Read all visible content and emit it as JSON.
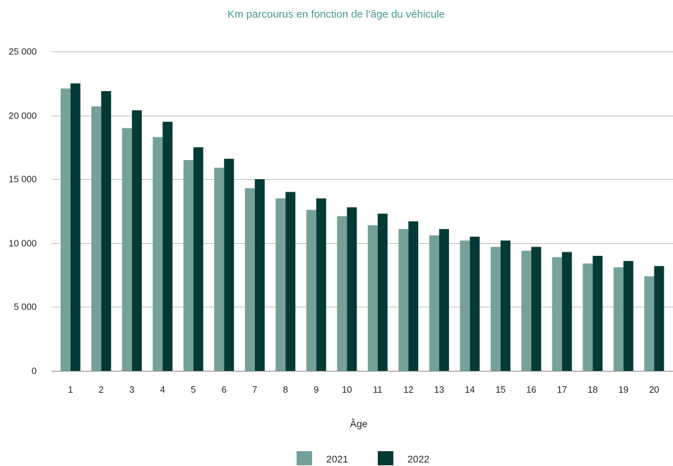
{
  "chart_data": {
    "type": "bar",
    "title": "Km parcourus en fonction de l’âge du véhicule",
    "xlabel": "Âge",
    "ylabel": "",
    "categories": [
      "1",
      "2",
      "3",
      "4",
      "5",
      "6",
      "7",
      "8",
      "9",
      "10",
      "11",
      "12",
      "13",
      "14",
      "15",
      "16",
      "17",
      "18",
      "19",
      "20"
    ],
    "series": [
      {
        "name": "2021",
        "color": "#75a19b",
        "values": [
          22100,
          20700,
          19000,
          18300,
          16500,
          15900,
          14300,
          13500,
          12600,
          12100,
          11400,
          11100,
          10600,
          10200,
          9700,
          9400,
          8900,
          8400,
          8100,
          7400
        ]
      },
      {
        "name": "2022",
        "color": "#033a35",
        "values": [
          22500,
          21900,
          20400,
          19500,
          17500,
          16600,
          15000,
          14000,
          13500,
          12800,
          12300,
          11700,
          11100,
          10500,
          10200,
          9700,
          9300,
          9000,
          8600,
          8200
        ]
      }
    ],
    "ylim": [
      0,
      25000
    ],
    "yticks": [
      0,
      5000,
      10000,
      15000,
      20000,
      25000
    ],
    "ytick_labels": [
      "0",
      "5 000",
      "10 000",
      "15 000",
      "20 000",
      "25 000"
    ],
    "grid": true,
    "legend_position": "bottom-center",
    "title_color": "#3f9a8e",
    "grid_color": "#bdbdbd"
  }
}
